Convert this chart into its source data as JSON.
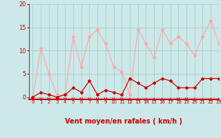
{
  "x": [
    0,
    1,
    2,
    3,
    4,
    5,
    6,
    7,
    8,
    9,
    10,
    11,
    12,
    13,
    14,
    15,
    16,
    17,
    18,
    19,
    20,
    21,
    22,
    23
  ],
  "wind_avg": [
    0,
    1,
    0.5,
    0,
    0.5,
    2,
    1,
    3.5,
    0.5,
    1.5,
    1,
    0.5,
    4,
    3,
    2,
    3,
    4,
    3.5,
    2,
    2,
    2,
    4,
    4,
    4
  ],
  "wind_gust": [
    0,
    10.5,
    5,
    0.5,
    0.5,
    13,
    6.5,
    13,
    14.5,
    11.5,
    6.5,
    5.5,
    0.5,
    14.5,
    11.5,
    8.5,
    14.5,
    11.5,
    13,
    11.5,
    9,
    13,
    16.5,
    11.5
  ],
  "color_avg": "#cc0000",
  "color_gust": "#ffaaaa",
  "bg_color": "#cce8e8",
  "grid_color": "#aacccc",
  "xlabel": "Vent moyen/en rafales ( km/h )",
  "ylabel_ticks": [
    0,
    5,
    10,
    15,
    20
  ],
  "ylim": [
    -0.5,
    20
  ],
  "xlim": [
    -0.5,
    23
  ],
  "tick_color": "#cc0000",
  "arrow_down_indices": [
    0,
    1,
    2,
    3,
    4,
    5,
    6,
    7,
    8,
    9,
    10,
    11,
    18,
    19
  ],
  "arrow_up_indices": [
    12,
    13,
    14,
    15,
    16,
    17,
    20,
    21,
    22,
    23
  ]
}
